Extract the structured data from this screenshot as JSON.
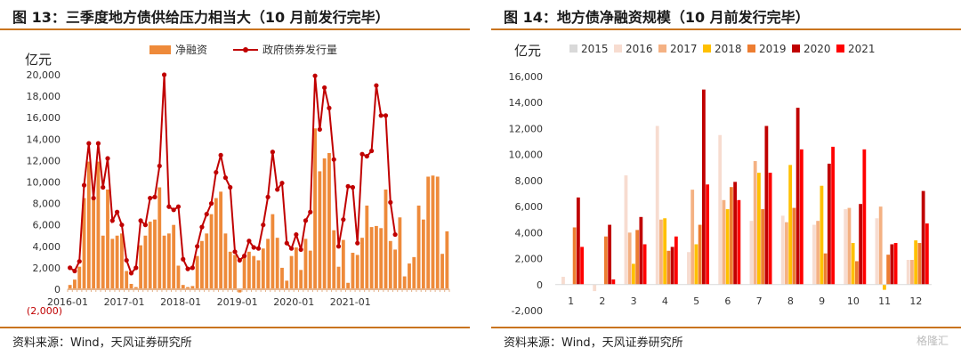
{
  "left": {
    "title": "图 13：三季度地方债供给压力相当大（10 月前发行完毕）",
    "source": "资料来源：Wind，天风证券研究所",
    "unit": "亿元"
  },
  "right": {
    "title": "图 14：地方债净融资规模（10 月前发行完毕）",
    "source": "资料来源：Wind，天风证券研究所",
    "unit": "亿元"
  },
  "watermark": "格隆汇",
  "chart_data": [
    {
      "type": "bar+line",
      "ylim": [
        -2000,
        20000
      ],
      "yticks": [
        0,
        2000,
        4000,
        6000,
        8000,
        10000,
        12000,
        14000,
        16000,
        18000,
        20000
      ],
      "ytick_labels": [
        "0",
        "2,000",
        "4,000",
        "6,000",
        "8,000",
        "10,000",
        "12,000",
        "14,000",
        "16,000",
        "18,000",
        "20,000"
      ],
      "neg_tick_label": "(2,000)",
      "x_labels": [
        "2016-01",
        "2017-01",
        "2018-01",
        "2019-01",
        "2020-01",
        "2021-01"
      ],
      "x_label_index": [
        0,
        12,
        24,
        36,
        48,
        60
      ],
      "legend": [
        "净融资",
        "政府债券发行量"
      ],
      "colors": {
        "bar": "#ee8a3a",
        "line": "#c00000"
      },
      "series": [
        {
          "name": "净融资",
          "values": [
            400,
            900,
            2100,
            8500,
            11900,
            8500,
            11900,
            5000,
            9300,
            4700,
            5000,
            5200,
            1700,
            500,
            200,
            4100,
            5000,
            6300,
            6500,
            9500,
            5000,
            5200,
            6000,
            2200,
            400,
            200,
            300,
            3100,
            4500,
            5200,
            7000,
            8500,
            9100,
            5200,
            3500,
            3200,
            -300,
            3100,
            3500,
            3100,
            2700,
            3800,
            4700,
            7000,
            4800,
            2000,
            800,
            3100,
            3900,
            1800,
            4700,
            3600,
            15000,
            11000,
            12200,
            12700,
            5500,
            2100,
            4600,
            600,
            3400,
            3200,
            4800,
            7800,
            5800,
            5900,
            5700,
            9300,
            4500,
            3700,
            6700,
            1200,
            2400,
            3000,
            7800,
            6500,
            10500,
            10600,
            10500,
            3300,
            5400
          ]
        },
        {
          "name": "政府债券发行量",
          "values": [
            2000,
            1700,
            2600,
            9700,
            13600,
            8500,
            13600,
            9500,
            12200,
            6400,
            7200,
            6000,
            2700,
            1500,
            2000,
            6400,
            6000,
            8500,
            8600,
            11500,
            20000,
            7700,
            7400,
            7700,
            2800,
            1900,
            2000,
            4000,
            5800,
            7000,
            8000,
            10900,
            12500,
            10400,
            9500,
            3500,
            2700,
            3100,
            4500,
            3900,
            3800,
            6000,
            8600,
            12800,
            9300,
            9900,
            4300,
            3800,
            5100,
            3700,
            6400,
            7200,
            19900,
            14900,
            18800,
            16900,
            12100,
            4000,
            6500,
            9600,
            9500,
            4300,
            12600,
            12400,
            12900,
            19000,
            16200,
            16200,
            8100,
            5100
          ]
        }
      ]
    },
    {
      "type": "bar",
      "categories": [
        "1",
        "2",
        "3",
        "4",
        "5",
        "6",
        "7",
        "8",
        "9",
        "10",
        "11",
        "12"
      ],
      "ylim": [
        -2000,
        16000
      ],
      "yticks": [
        -2000,
        0,
        2000,
        4000,
        6000,
        8000,
        10000,
        12000,
        14000,
        16000
      ],
      "ytick_labels": [
        "-2,000",
        "0",
        "2,000",
        "4,000",
        "6,000",
        "8,000",
        "10,000",
        "12,000",
        "14,000",
        "16,000"
      ],
      "series": [
        {
          "name": "2015",
          "color": "#d9d9d9",
          "values": [
            0,
            0,
            0,
            0,
            0,
            0,
            0,
            0,
            0,
            0,
            0,
            0
          ]
        },
        {
          "name": "2016",
          "color": "#f7dcd0",
          "values": [
            600,
            -500,
            8400,
            12200,
            2500,
            11500,
            4900,
            5300,
            4600,
            5800,
            5100,
            1900
          ]
        },
        {
          "name": "2017",
          "color": "#f4b183",
          "values": [
            0,
            0,
            4000,
            5000,
            7300,
            6500,
            9500,
            4800,
            4900,
            5900,
            6000,
            1900
          ]
        },
        {
          "name": "2018",
          "color": "#ffc000",
          "values": [
            0,
            0,
            1600,
            5100,
            3100,
            5800,
            8600,
            9200,
            7600,
            3200,
            -400,
            3400
          ]
        },
        {
          "name": "2019",
          "color": "#ed7d31",
          "values": [
            4400,
            3700,
            4200,
            2600,
            4600,
            7500,
            5800,
            5900,
            2400,
            1800,
            2300,
            3200
          ]
        },
        {
          "name": "2020",
          "color": "#c00000",
          "values": [
            6700,
            4600,
            5200,
            2900,
            15000,
            7900,
            12200,
            13600,
            9300,
            6200,
            3100,
            7200
          ]
        },
        {
          "name": "2021",
          "color": "#ff0000",
          "values": [
            2900,
            400,
            3100,
            3700,
            7700,
            6500,
            8600,
            10400,
            10600,
            10400,
            3200,
            4700
          ]
        }
      ]
    }
  ]
}
